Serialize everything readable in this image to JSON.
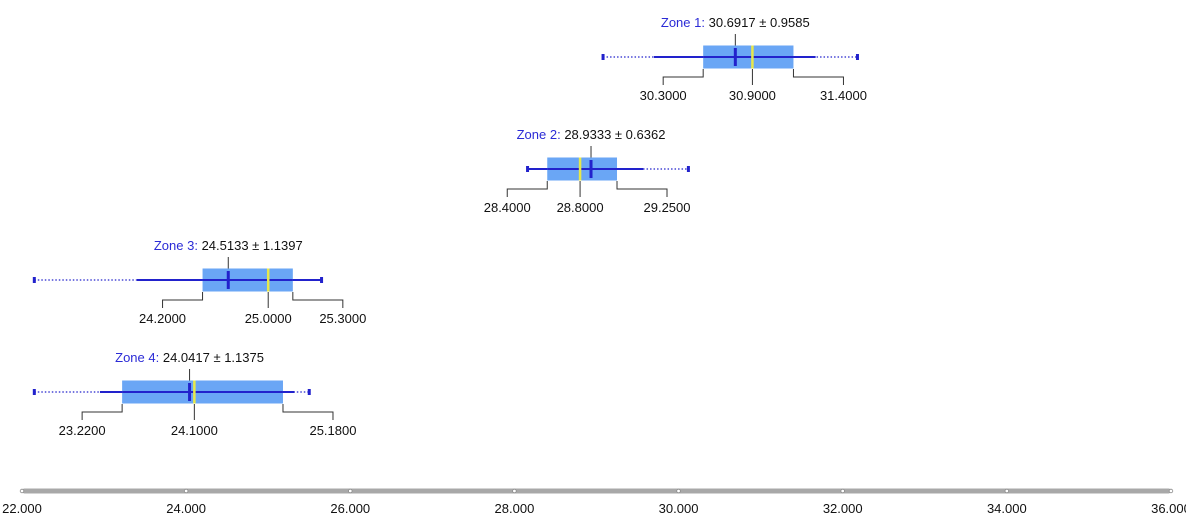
{
  "chart_data": {
    "type": "box",
    "xlim": [
      22,
      36
    ],
    "x_ticks": [
      "22.000",
      "24.000",
      "26.000",
      "28.000",
      "30.000",
      "32.000",
      "34.000",
      "36.000"
    ],
    "x_tick_values": [
      22,
      24,
      26,
      28,
      30,
      32,
      34,
      36
    ],
    "colors": {
      "box": "#6aa6f5",
      "whisker": "#2222cc",
      "mean": "#2222cc",
      "median": "#e8e84a",
      "bracket": "#333333",
      "axis": "#a8a8a8"
    },
    "series": [
      {
        "name": "Zone 1:",
        "stat": "30.6917 ± 0.9585",
        "mean": 30.6917,
        "std": 0.9585,
        "q1": 30.3,
        "median": 30.9,
        "q3": 31.4,
        "q1_label": "30.3000",
        "median_label": "30.9000",
        "q3_label": "31.4000",
        "whisker_low": 29.7,
        "whisker_high": 31.67,
        "range_low": 29.08,
        "range_high": 32.18
      },
      {
        "name": "Zone 2:",
        "stat": "28.9333 ± 0.6362",
        "mean": 28.9333,
        "std": 0.6362,
        "q1": 28.4,
        "median": 28.8,
        "q3": 29.25,
        "q1_label": "28.4000",
        "median_label": "28.8000",
        "q3_label": "29.2500",
        "whisker_low": 28.16,
        "whisker_high": 29.57,
        "range_low": 28.16,
        "range_high": 30.12
      },
      {
        "name": "Zone 3:",
        "stat": "24.5133 ± 1.1397",
        "mean": 24.5133,
        "std": 1.1397,
        "q1": 24.2,
        "median": 25.0,
        "q3": 25.3,
        "q1_label": "24.2000",
        "median_label": "25.0000",
        "q3_label": "25.3000",
        "whisker_low": 23.4,
        "whisker_high": 25.65,
        "range_low": 22.15,
        "range_high": 25.65
      },
      {
        "name": "Zone 4:",
        "stat": "24.0417 ± 1.1375",
        "mean": 24.0417,
        "std": 1.1375,
        "q1": 23.22,
        "median": 24.1,
        "q3": 25.18,
        "q1_label": "23.2200",
        "median_label": "24.1000",
        "q3_label": "25.1800",
        "whisker_low": 22.95,
        "whisker_high": 25.32,
        "range_low": 22.15,
        "range_high": 25.5
      }
    ]
  }
}
